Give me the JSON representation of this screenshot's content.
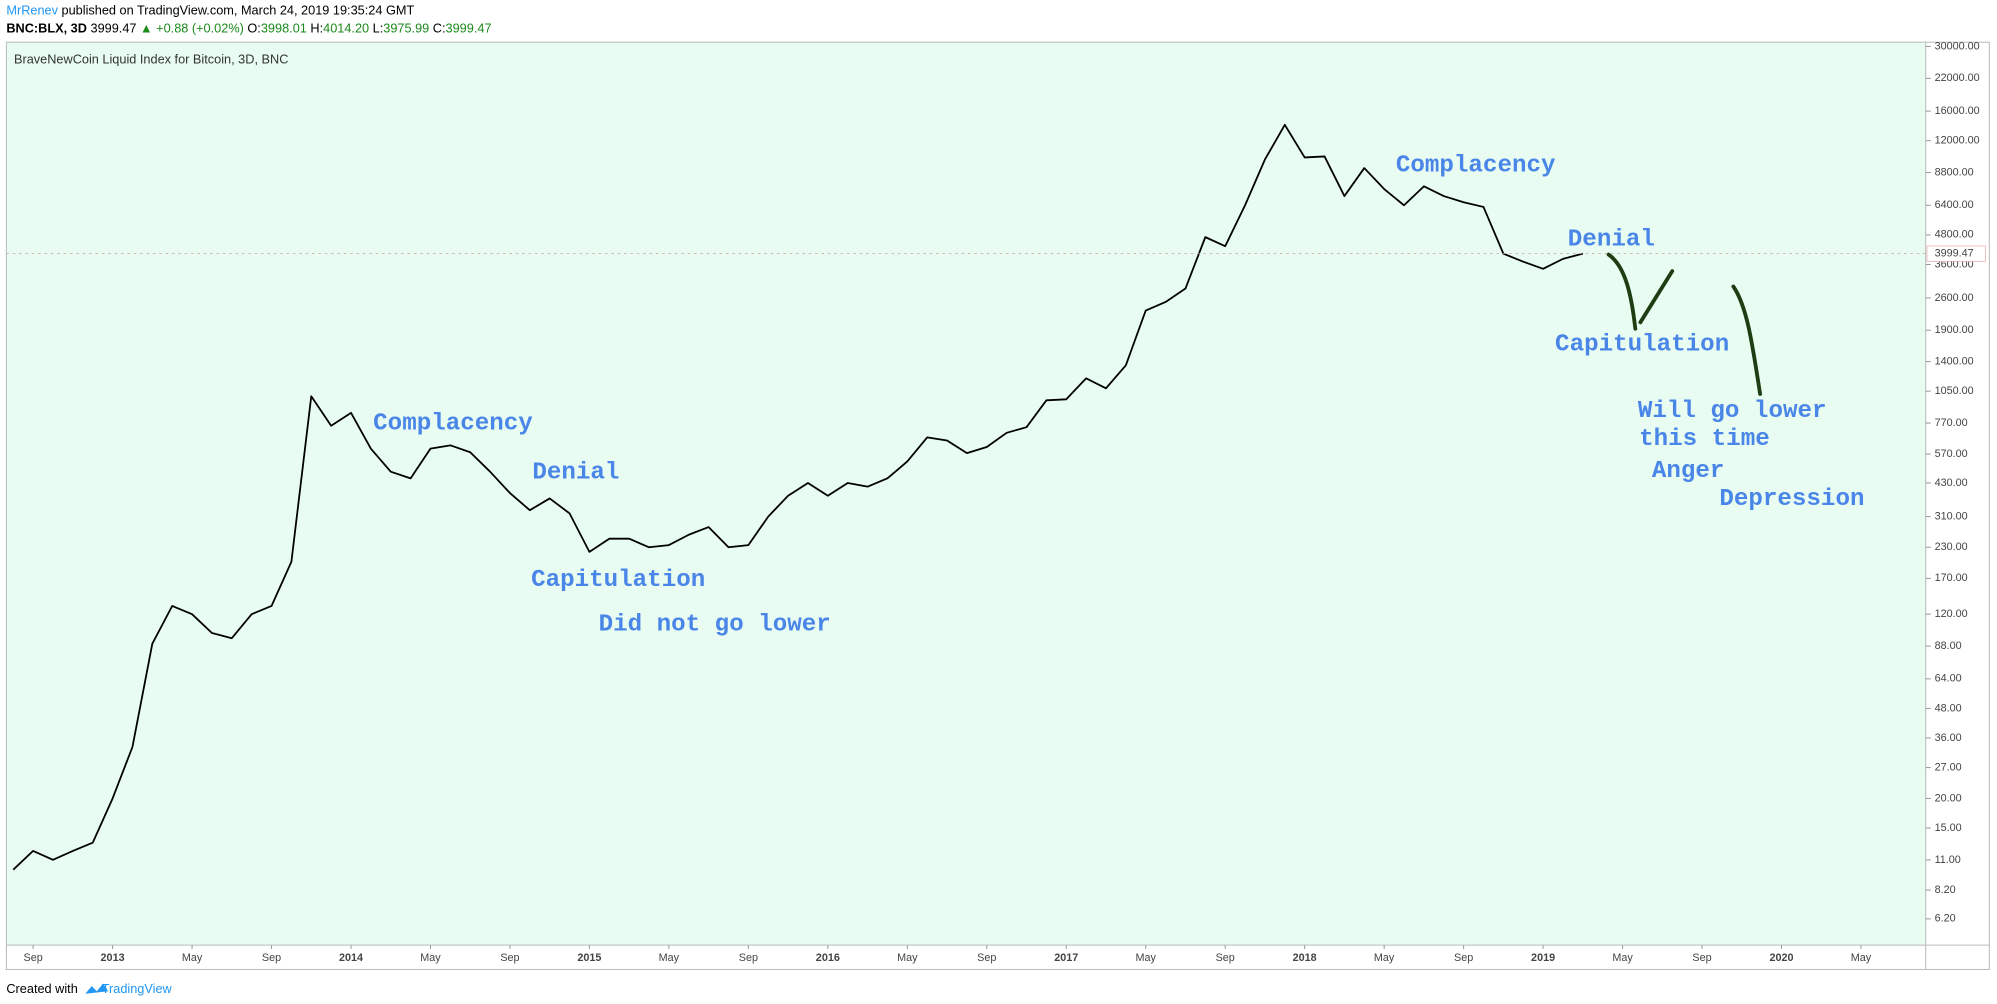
{
  "header": {
    "author": "MrRenev",
    "published": "published on TradingView.com, March 24, 2019 19:35:24 GMT",
    "symbol": "BNC:BLX, 3D",
    "last": "3999.47",
    "change": "▲ +0.88 (+0.02%)",
    "open_label": "O:",
    "open": "3998.01",
    "high_label": "H:",
    "high": "4014.20",
    "low_label": "L:",
    "low": "3975.99",
    "close_label": "C:",
    "close": "3999.47"
  },
  "footer": {
    "created": "Created with",
    "brand": "TradingView"
  },
  "chart_data": {
    "type": "line",
    "log_scale": true,
    "background": "#e8fcf2",
    "categories": [
      null,
      "Sep",
      null,
      null,
      null,
      "2013",
      null,
      null,
      null,
      "May",
      null,
      null,
      null,
      "Sep",
      null,
      null,
      null,
      "2014",
      null,
      null,
      null,
      "May",
      null,
      null,
      null,
      "Sep",
      null,
      null,
      null,
      "2015",
      null,
      null,
      null,
      "May",
      null,
      null,
      null,
      "Sep",
      null,
      null,
      null,
      "2016",
      null,
      null,
      null,
      "May",
      null,
      null,
      null,
      "Sep",
      null,
      null,
      null,
      "2017",
      null,
      null,
      null,
      "May",
      null,
      null,
      null,
      "Sep",
      null,
      null,
      null,
      "2018",
      null,
      null,
      null,
      "May",
      null,
      null,
      null,
      "Sep",
      null,
      null,
      null,
      "2019",
      null,
      null,
      null,
      "May",
      null,
      null,
      null,
      "Sep",
      null,
      null,
      null,
      "2020",
      null,
      null,
      null,
      "May",
      null,
      null
    ],
    "series": [
      {
        "name": "BraveNewCoin Liquid Index for Bitcoin, 3D, BNC",
        "color": "#000000",
        "values": [
          10,
          12,
          11,
          12,
          13,
          20,
          33,
          90,
          130,
          120,
          100,
          95,
          120,
          130,
          200,
          1000,
          750,
          850,
          600,
          480,
          450,
          600,
          620,
          580,
          480,
          390,
          330,
          370,
          320,
          220,
          250,
          250,
          230,
          235,
          260,
          280,
          230,
          235,
          310,
          380,
          430,
          380,
          430,
          415,
          450,
          530,
          670,
          650,
          575,
          610,
          700,
          740,
          960,
          970,
          1190,
          1080,
          1350,
          2300,
          2500,
          2850,
          4700,
          4300,
          6400,
          10000,
          14000,
          10200,
          10300,
          7000,
          9200,
          7500,
          6400,
          7700,
          7000,
          6600,
          6300,
          4000,
          3700,
          3450,
          3800,
          4000,
          null,
          null,
          null,
          null,
          null,
          null,
          null,
          null,
          null,
          null,
          null,
          null,
          null,
          null,
          null,
          null
        ]
      }
    ],
    "last_price": 3999.47,
    "ylim": [
      4.8,
      30500
    ],
    "yticks": [
      {
        "value": 30000,
        "label": "30000.00"
      },
      {
        "value": 22000,
        "label": "22000.00"
      },
      {
        "value": 16000,
        "label": "16000.00"
      },
      {
        "value": 12000,
        "label": "12000.00"
      },
      {
        "value": 8800,
        "label": "8800.00"
      },
      {
        "value": 6400,
        "label": "6400.00"
      },
      {
        "value": 4800,
        "label": "4800.00"
      },
      {
        "value": 3600,
        "label": "3600.00"
      },
      {
        "value": 2600,
        "label": "2600.00"
      },
      {
        "value": 1900,
        "label": "1900.00"
      },
      {
        "value": 1400,
        "label": "1400.00"
      },
      {
        "value": 1050,
        "label": "1050.00"
      },
      {
        "value": 770,
        "label": "770.00"
      },
      {
        "value": 570,
        "label": "570.00"
      },
      {
        "value": 430,
        "label": "430.00"
      },
      {
        "value": 310,
        "label": "310.00"
      },
      {
        "value": 230,
        "label": "230.00"
      },
      {
        "value": 170,
        "label": "170.00"
      },
      {
        "value": 120,
        "label": "120.00"
      },
      {
        "value": 88,
        "label": "88.00"
      },
      {
        "value": 64,
        "label": "64.00"
      },
      {
        "value": 48,
        "label": "48.00"
      },
      {
        "value": 36,
        "label": "36.00"
      },
      {
        "value": 27,
        "label": "27.00"
      },
      {
        "value": 20,
        "label": "20.00"
      },
      {
        "value": 15,
        "label": "15.00"
      },
      {
        "value": 11,
        "label": "11.00"
      },
      {
        "value": 8.2,
        "label": "8.20"
      },
      {
        "value": 6.2,
        "label": "6.20"
      }
    ],
    "annotations": [
      "Complacency",
      "Denial",
      "Capitulation",
      "Did not go lower",
      "Complacency",
      "Denial",
      "Capitulation",
      "Will go lower",
      "this time",
      "Anger",
      "Depression"
    ]
  }
}
